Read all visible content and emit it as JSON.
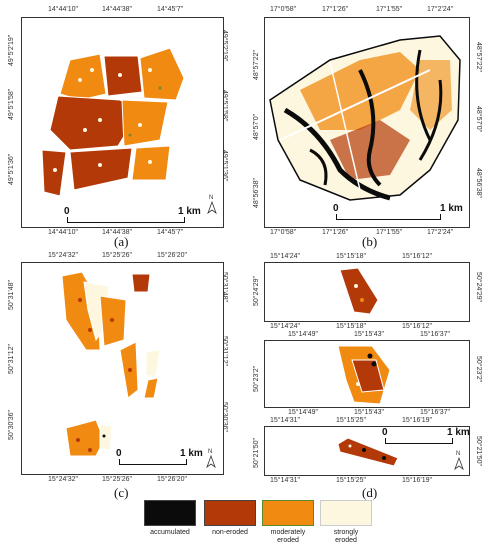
{
  "colors": {
    "accumulated": "#0b0b0b",
    "non_eroded": "#b33a08",
    "moderately_eroded": "#f08a10",
    "strongly_eroded": "#fdf7e0"
  },
  "panels": {
    "a": {
      "label": "(a)",
      "top_ticks": [
        "14°44'10\"",
        "14°44'38\"",
        "14°45'7\""
      ],
      "bottom_ticks": [
        "14°44'10\"",
        "14°44'38\"",
        "14°45'7\""
      ],
      "left_ticks": [
        "49°5'2'19\"",
        "49°5'1'58\"",
        "49°5'1'36\""
      ],
      "right_ticks": [
        "49°5'2'19\"",
        "49°5'1'58\"",
        "49°5'1'36\""
      ],
      "scale_zero": "0",
      "scale_label": "1 km",
      "north": "N"
    },
    "b": {
      "label": "(b)",
      "top_ticks": [
        "17°0'58\"",
        "17°1'26\"",
        "17°1'55\"",
        "17°2'24\""
      ],
      "bottom_ticks": [
        "17°0'58\"",
        "17°1'26\"",
        "17°1'55\"",
        "17°2'24\""
      ],
      "left_ticks": [
        "48°57'22\"",
        "48°57'0\"",
        "48°56'38\""
      ],
      "right_ticks": [
        "48°57'22\"",
        "48°57'0\"",
        "48°56'38\""
      ],
      "scale_zero": "0",
      "scale_label": "1 km",
      "north": "N"
    },
    "c": {
      "label": "(c)",
      "top_ticks": [
        "15°24'32\"",
        "15°25'26\"",
        "15°26'20\""
      ],
      "bottom_ticks": [
        "15°24'32\"",
        "15°25'26\"",
        "15°26'20\""
      ],
      "left_ticks": [
        "50°31'48\"",
        "50°31'12\"",
        "50°30'36\""
      ],
      "right_ticks": [
        "50°31'48\"",
        "50°31'12\"",
        "50°30'36\""
      ],
      "scale_zero": "0",
      "scale_label": "1 km",
      "north": "N"
    },
    "d": {
      "label": "(d)",
      "sub1_top": [
        "15°14'24\"",
        "15°15'18\"",
        "15°16'12\""
      ],
      "sub1_bottom": [
        "15°14'24\"",
        "15°15'18\"",
        "15°16'12\""
      ],
      "sub1_lat": "50°24'29\"",
      "sub2_top": [
        "15°14'49\"",
        "15°15'43\"",
        "15°16'37\""
      ],
      "sub2_bottom": [
        "15°14'49\"",
        "15°15'43\"",
        "15°16'37\""
      ],
      "sub2_lat": "50°23'2\"",
      "sub3_top": [
        "15°14'31\"",
        "15°15'25\"",
        "15°16'19\""
      ],
      "sub3_bottom": [
        "15°14'31\"",
        "15°15'25\"",
        "15°16'19\""
      ],
      "sub3_lat": "50°21'50\"",
      "scale_zero": "0",
      "scale_label": "1 km",
      "north": "N"
    }
  },
  "legend": [
    {
      "key": "accumulated",
      "label": "accumulated"
    },
    {
      "key": "non_eroded",
      "label": "non-eroded"
    },
    {
      "key": "moderately_eroded",
      "label": "moderately\neroded"
    },
    {
      "key": "strongly_eroded",
      "label": "strongly\neroded"
    }
  ]
}
